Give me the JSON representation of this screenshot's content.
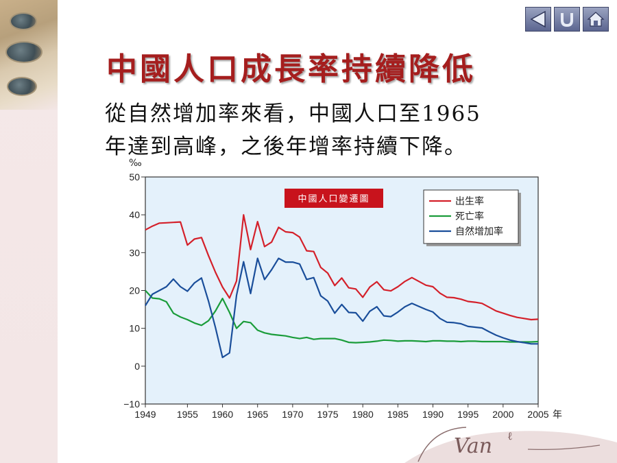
{
  "title": "中國人口成長率持續降低",
  "subtitle_line1": "從自然增加率來看，中國人口至1965",
  "subtitle_line2": "年達到高峰，之後年增率持續下降。",
  "nav": [
    {
      "label": "",
      "icon": "back-arrow-icon"
    },
    {
      "label": "",
      "icon": "return-icon"
    },
    {
      "label": "",
      "icon": "home-icon"
    }
  ],
  "signature": "Van",
  "chart_data": {
    "type": "line",
    "title": "中國人口變遷圖",
    "title_color": "#c8131c",
    "unit_label": "‰",
    "xlabel_suffix": "年",
    "background": "#e4f1fb",
    "grid": false,
    "legend_position": "top-right",
    "xlim": [
      1949,
      2005
    ],
    "ylim": [
      -10,
      50
    ],
    "xticks": [
      1949,
      1955,
      1960,
      1965,
      1970,
      1975,
      1980,
      1985,
      1990,
      1995,
      2000,
      2005
    ],
    "xtick_labels": [
      "1949",
      "1955",
      "1960",
      "1965",
      "1970",
      "1975",
      "1980",
      "1985",
      "1990",
      "1995",
      "2000",
      "2005"
    ],
    "yticks": [
      -10,
      0,
      10,
      20,
      30,
      40,
      50
    ],
    "ytick_labels": [
      "−10",
      "0",
      "10",
      "20",
      "30",
      "40",
      "50"
    ],
    "series": [
      {
        "name": "出生率",
        "color": "#d4202a",
        "x": [
          1949,
          1950,
          1951,
          1952,
          1953,
          1954,
          1955,
          1956,
          1957,
          1958,
          1959,
          1960,
          1961,
          1962,
          1963,
          1964,
          1965,
          1966,
          1967,
          1968,
          1969,
          1970,
          1971,
          1972,
          1973,
          1974,
          1975,
          1976,
          1977,
          1978,
          1979,
          1980,
          1981,
          1982,
          1983,
          1984,
          1985,
          1986,
          1987,
          1988,
          1989,
          1990,
          1991,
          1992,
          1993,
          1994,
          1995,
          1996,
          1997,
          1998,
          1999,
          2000,
          2001,
          2002,
          2003,
          2004,
          2005
        ],
        "values": [
          36.0,
          37.0,
          37.8,
          37.9,
          38.0,
          38.1,
          32.0,
          33.6,
          34.0,
          29.2,
          24.8,
          20.9,
          18.0,
          22.5,
          40.0,
          30.8,
          38.2,
          31.6,
          32.8,
          36.7,
          35.5,
          35.3,
          34.1,
          30.5,
          30.3,
          26.1,
          24.6,
          21.3,
          23.3,
          20.7,
          20.4,
          18.2,
          20.9,
          22.3,
          20.2,
          19.9,
          21.0,
          22.4,
          23.4,
          22.4,
          21.4,
          21.0,
          19.3,
          18.2,
          18.1,
          17.7,
          17.1,
          16.9,
          16.6,
          15.6,
          14.6,
          14.0,
          13.4,
          12.9,
          12.6,
          12.3,
          12.4
        ]
      },
      {
        "name": "死亡率",
        "color": "#1a9c3a",
        "x": [
          1949,
          1950,
          1951,
          1952,
          1953,
          1954,
          1955,
          1956,
          1957,
          1958,
          1959,
          1960,
          1961,
          1962,
          1963,
          1964,
          1965,
          1966,
          1967,
          1968,
          1969,
          1970,
          1971,
          1972,
          1973,
          1974,
          1975,
          1976,
          1977,
          1978,
          1979,
          1980,
          1981,
          1982,
          1983,
          1984,
          1985,
          1986,
          1987,
          1988,
          1989,
          1990,
          1991,
          1992,
          1993,
          1994,
          1995,
          1996,
          1997,
          1998,
          1999,
          2000,
          2001,
          2002,
          2003,
          2004,
          2005
        ],
        "values": [
          20.0,
          18.0,
          17.8,
          17.0,
          14.0,
          13.0,
          12.3,
          11.4,
          10.8,
          12.0,
          14.6,
          17.9,
          14.2,
          10.0,
          11.8,
          11.5,
          9.5,
          8.8,
          8.4,
          8.2,
          8.0,
          7.6,
          7.3,
          7.6,
          7.1,
          7.3,
          7.3,
          7.3,
          6.9,
          6.3,
          6.2,
          6.3,
          6.4,
          6.6,
          6.9,
          6.8,
          6.6,
          6.7,
          6.7,
          6.6,
          6.5,
          6.7,
          6.7,
          6.6,
          6.6,
          6.5,
          6.6,
          6.6,
          6.5,
          6.5,
          6.5,
          6.5,
          6.4,
          6.4,
          6.4,
          6.4,
          6.5
        ]
      },
      {
        "name": "自然增加率",
        "color": "#1a4e9a",
        "x": [
          1949,
          1950,
          1951,
          1952,
          1953,
          1954,
          1955,
          1956,
          1957,
          1958,
          1959,
          1960,
          1961,
          1962,
          1963,
          1964,
          1965,
          1966,
          1967,
          1968,
          1969,
          1970,
          1971,
          1972,
          1973,
          1974,
          1975,
          1976,
          1977,
          1978,
          1979,
          1980,
          1981,
          1982,
          1983,
          1984,
          1985,
          1986,
          1987,
          1988,
          1989,
          1990,
          1991,
          1992,
          1993,
          1994,
          1995,
          1996,
          1997,
          1998,
          1999,
          2000,
          2001,
          2002,
          2003,
          2004,
          2005
        ],
        "values": [
          16.0,
          19.0,
          20.0,
          21.0,
          23.0,
          21.0,
          19.8,
          22.0,
          23.3,
          17.2,
          10.2,
          2.3,
          3.5,
          18.7,
          27.6,
          19.2,
          28.5,
          22.9,
          25.5,
          28.5,
          27.5,
          27.5,
          27.0,
          22.9,
          23.4,
          18.6,
          17.2,
          14.0,
          16.3,
          14.2,
          14.1,
          11.9,
          14.5,
          15.7,
          13.3,
          13.1,
          14.3,
          15.7,
          16.6,
          15.8,
          15.0,
          14.3,
          12.6,
          11.6,
          11.5,
          11.2,
          10.5,
          10.3,
          10.1,
          9.1,
          8.2,
          7.5,
          6.9,
          6.5,
          6.2,
          5.9,
          5.9
        ]
      }
    ]
  }
}
